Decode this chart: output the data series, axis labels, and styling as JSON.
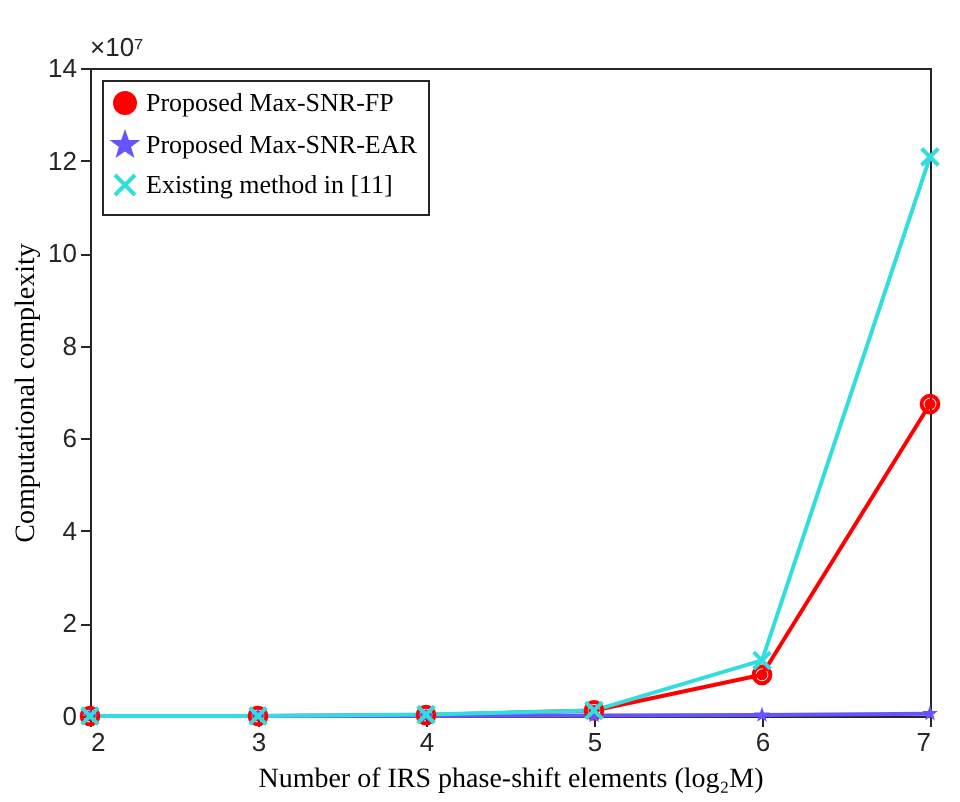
{
  "chart_data": {
    "type": "line",
    "xlabel": "Number of IRS phase-shift elements (log₂M)",
    "ylabel": "Computational complexity",
    "annotations": [
      "×10⁷"
    ],
    "x": [
      2,
      3,
      4,
      5,
      6,
      7
    ],
    "series": [
      {
        "name": "Proposed Max-SNR-FP",
        "color": "#ff0000",
        "marker": "circle",
        "values": [
          0.0,
          0.0,
          0.02,
          0.12,
          0.89,
          6.74
        ]
      },
      {
        "name": "Proposed Max-SNR-EAR",
        "color": "#6655ff",
        "marker": "star",
        "values": [
          0.0,
          0.0,
          0.0,
          0.01,
          0.02,
          0.05
        ]
      },
      {
        "name": "Existing method in [11]",
        "color": "#33dddd",
        "marker": "cross",
        "values": [
          0.0,
          0.0,
          0.03,
          0.12,
          1.2,
          12.08
        ]
      }
    ],
    "xlim": [
      2,
      7
    ],
    "xticks": [
      2,
      3,
      4,
      5,
      6,
      7
    ],
    "ylim": [
      0,
      14
    ],
    "yticks": [
      0,
      2,
      4,
      6,
      8,
      10,
      12,
      14
    ],
    "grid": false,
    "legend": "top left",
    "line_style": "solid"
  }
}
